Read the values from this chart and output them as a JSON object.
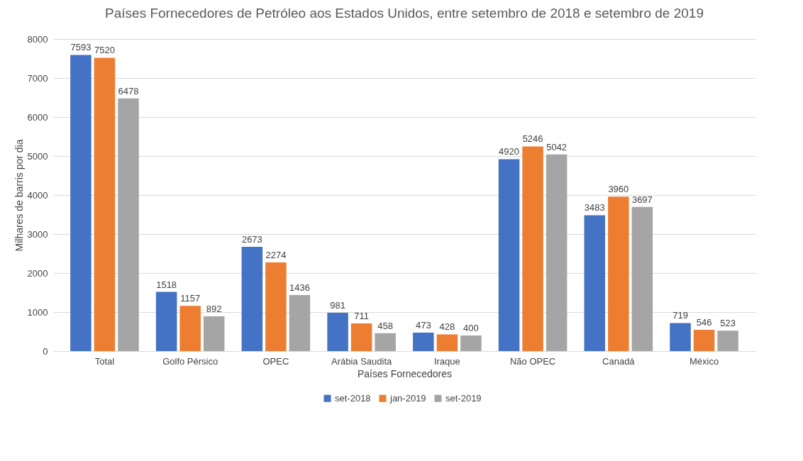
{
  "chart_data": {
    "type": "bar",
    "title": "Países Fornecedores de Petróleo aos Estados Unidos, entre setembro de 2018 e setembro de 2019",
    "xlabel": "Países Fornecedores",
    "ylabel": "Milhares de barris por dia",
    "categories": [
      "Total",
      "Golfo Pérsico",
      "OPEC",
      "Arábia Saudita",
      "Iraque",
      "Não OPEC",
      "Canadá",
      "México"
    ],
    "series": [
      {
        "name": "set-2018",
        "color": "#4472c4",
        "values": [
          7593,
          1518,
          2673,
          981,
          473,
          4920,
          3483,
          719
        ]
      },
      {
        "name": "jan-2019",
        "color": "#ed7d31",
        "values": [
          7520,
          1157,
          2274,
          711,
          428,
          5246,
          3960,
          546
        ]
      },
      {
        "name": "set-2019",
        "color": "#a5a5a5",
        "values": [
          6478,
          892,
          1436,
          458,
          400,
          5042,
          3697,
          523
        ]
      }
    ],
    "ylim": [
      0,
      8000
    ],
    "yticks": [
      0,
      1000,
      2000,
      3000,
      4000,
      5000,
      6000,
      7000,
      8000
    ],
    "grid": "y",
    "legend": "bottom",
    "data_labels": true
  }
}
